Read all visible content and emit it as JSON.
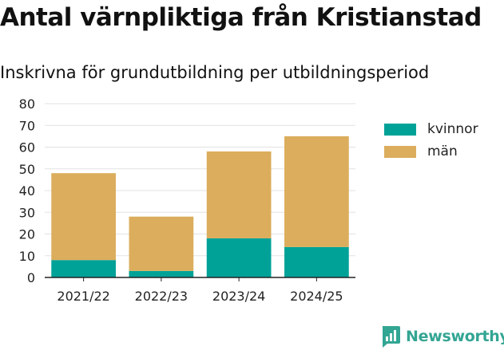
{
  "title": "Antal värnpliktiga från Kristianstad",
  "subtitle": "Inskrivna för grundutbildning per utbildningsperiod",
  "brand": "Newsworthy",
  "colors": {
    "kvinnor": "#00a298",
    "man": "#dbad5c",
    "grid": "#e2e2e2",
    "axis": "#222222",
    "brand": "#33a593"
  },
  "legend": [
    {
      "label": "kvinnor",
      "color": "#00a298"
    },
    {
      "label": "män",
      "color": "#dbad5c"
    }
  ],
  "chart_data": {
    "type": "bar",
    "stacked": true,
    "categories": [
      "2021/22",
      "2022/23",
      "2023/24",
      "2024/25"
    ],
    "series": [
      {
        "name": "kvinnor",
        "values": [
          8,
          3,
          18,
          14
        ]
      },
      {
        "name": "män",
        "values": [
          40,
          25,
          40,
          51
        ]
      }
    ],
    "yticks": [
      0,
      10,
      20,
      30,
      40,
      50,
      60,
      70,
      80
    ],
    "ylim": [
      0,
      80
    ],
    "grid": true,
    "legend_position": "right"
  }
}
